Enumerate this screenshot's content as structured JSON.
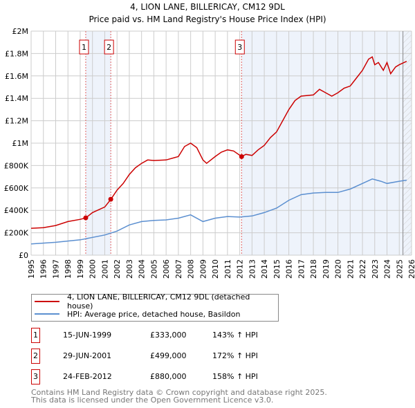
{
  "chart_data": {
    "type": "line",
    "title": "4, LION LANE, BILLERICAY, CM12 9DL",
    "subtitle": "Price paid vs. HM Land Registry's House Price Index (HPI)",
    "xlim": [
      1995,
      2026
    ],
    "ylim": [
      0,
      2000000
    ],
    "x_ticks": [
      "1995",
      "1996",
      "1997",
      "1998",
      "1999",
      "2000",
      "2001",
      "2002",
      "2003",
      "2004",
      "2005",
      "2006",
      "2007",
      "2008",
      "2009",
      "2010",
      "2011",
      "2012",
      "2013",
      "2014",
      "2015",
      "2016",
      "2017",
      "2018",
      "2019",
      "2020",
      "2021",
      "2022",
      "2023",
      "2024",
      "2025",
      "2026"
    ],
    "y_ticks": [
      {
        "v": 0,
        "label": "£0"
      },
      {
        "v": 200000,
        "label": "£200K"
      },
      {
        "v": 400000,
        "label": "£400K"
      },
      {
        "v": 600000,
        "label": "£600K"
      },
      {
        "v": 800000,
        "label": "£800K"
      },
      {
        "v": 1000000,
        "label": "£1M"
      },
      {
        "v": 1200000,
        "label": "£1.2M"
      },
      {
        "v": 1400000,
        "label": "£1.4M"
      },
      {
        "v": 1600000,
        "label": "£1.6M"
      },
      {
        "v": 1800000,
        "label": "£1.8M"
      },
      {
        "v": 2000000,
        "label": "£2M"
      }
    ],
    "grid": true,
    "series": [
      {
        "name": "4, LION LANE, BILLERICAY, CM12 9DL (detached house)",
        "color": "#cc0000",
        "x": [
          1995,
          1996,
          1997,
          1998,
          1999,
          1999.45,
          2000,
          2001,
          2001.5,
          2002,
          2002.5,
          2003,
          2003.5,
          2004,
          2004.5,
          2005,
          2006,
          2007,
          2007.5,
          2008,
          2008.5,
          2009,
          2009.3,
          2010,
          2010.5,
          2011,
          2011.5,
          2012.15,
          2012.5,
          2013,
          2013.5,
          2014,
          2014.5,
          2015,
          2015.5,
          2016,
          2016.5,
          2017,
          2018,
          2018.5,
          2019,
          2019.5,
          2020,
          2020.5,
          2021,
          2021.5,
          2022,
          2022.5,
          2022.8,
          2023,
          2023.3,
          2023.7,
          2024,
          2024.3,
          2024.7,
          2025,
          2025.6
        ],
        "y": [
          240000,
          245000,
          265000,
          300000,
          320000,
          333000,
          380000,
          430000,
          499000,
          580000,
          640000,
          720000,
          780000,
          820000,
          850000,
          845000,
          850000,
          880000,
          970000,
          1000000,
          960000,
          850000,
          820000,
          880000,
          920000,
          940000,
          930000,
          880000,
          900000,
          890000,
          940000,
          980000,
          1050000,
          1100000,
          1200000,
          1300000,
          1380000,
          1420000,
          1430000,
          1480000,
          1450000,
          1420000,
          1450000,
          1490000,
          1510000,
          1580000,
          1650000,
          1750000,
          1770000,
          1700000,
          1720000,
          1650000,
          1720000,
          1620000,
          1680000,
          1700000,
          1730000
        ]
      },
      {
        "name": "HPI: Average price, detached house, Basildon",
        "color": "#5b8fd0",
        "x": [
          1995,
          1997,
          1999,
          2001,
          2002,
          2003,
          2004,
          2005,
          2006,
          2007,
          2008,
          2009,
          2010,
          2011,
          2012,
          2013,
          2014,
          2015,
          2016,
          2017,
          2018,
          2019,
          2020,
          2021,
          2022,
          2022.8,
          2023.5,
          2024,
          2025,
          2025.6
        ],
        "y": [
          100000,
          115000,
          137000,
          180000,
          215000,
          270000,
          300000,
          310000,
          315000,
          330000,
          360000,
          300000,
          330000,
          345000,
          340000,
          350000,
          380000,
          420000,
          490000,
          540000,
          555000,
          560000,
          560000,
          590000,
          640000,
          680000,
          660000,
          640000,
          660000,
          670000
        ]
      }
    ],
    "sales": [
      {
        "n": "1",
        "x": 1999.45,
        "date": "15-JUN-1999",
        "price": "£333,000",
        "hpi": "143% ↑ HPI",
        "value": 333000
      },
      {
        "n": "2",
        "x": 2001.49,
        "date": "29-JUN-2001",
        "price": "£499,000",
        "hpi": "172% ↑ HPI",
        "value": 499000
      },
      {
        "n": "3",
        "x": 2012.15,
        "date": "24-FEB-2012",
        "price": "£880,000",
        "hpi": "158% ↑ HPI",
        "value": 880000
      }
    ],
    "forecast_start": 2025.3
  },
  "footer": {
    "line1": "Contains HM Land Registry data © Crown copyright and database right 2025.",
    "line2": "This data is licensed under the Open Government Licence v3.0."
  }
}
